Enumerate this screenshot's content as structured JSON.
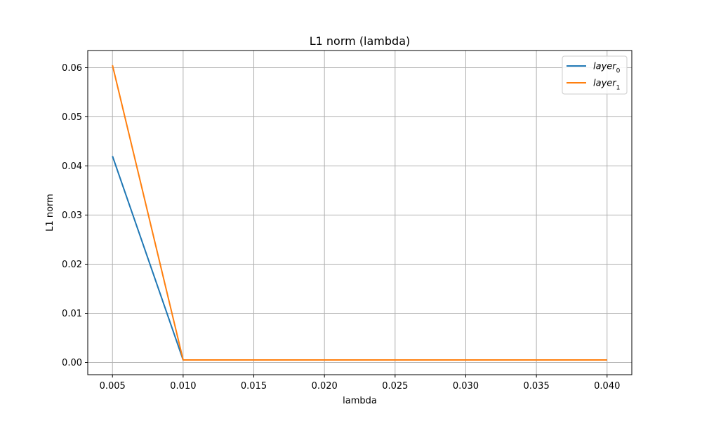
{
  "chart_data": {
    "type": "line",
    "title": "L1 norm (lambda)",
    "xlabel": "lambda",
    "ylabel": "L1 norm",
    "xlim": [
      0.00325,
      0.04175
    ],
    "ylim": [
      -0.0025,
      0.0635
    ],
    "x_ticks": [
      0.005,
      0.01,
      0.015,
      0.02,
      0.025,
      0.03,
      0.035,
      0.04
    ],
    "x_tick_labels": [
      "0.005",
      "0.010",
      "0.015",
      "0.020",
      "0.025",
      "0.030",
      "0.035",
      "0.040"
    ],
    "y_ticks": [
      0.0,
      0.01,
      0.02,
      0.03,
      0.04,
      0.05,
      0.06
    ],
    "y_tick_labels": [
      "0.00",
      "0.01",
      "0.02",
      "0.03",
      "0.04",
      "0.05",
      "0.06"
    ],
    "grid": true,
    "legend_position": "top-right",
    "x": [
      0.005,
      0.01,
      0.015,
      0.02,
      0.025,
      0.03,
      0.035,
      0.04
    ],
    "series": [
      {
        "name": "layer",
        "subscript": "0",
        "color": "#1f77b4",
        "values": [
          0.042,
          0.0005,
          0.0005,
          0.0005,
          0.0005,
          0.0005,
          0.0005,
          0.0005
        ]
      },
      {
        "name": "layer",
        "subscript": "1",
        "color": "#ff7f0e",
        "values": [
          0.0605,
          0.0005,
          0.0005,
          0.0005,
          0.0005,
          0.0005,
          0.0005,
          0.0005
        ]
      }
    ]
  }
}
